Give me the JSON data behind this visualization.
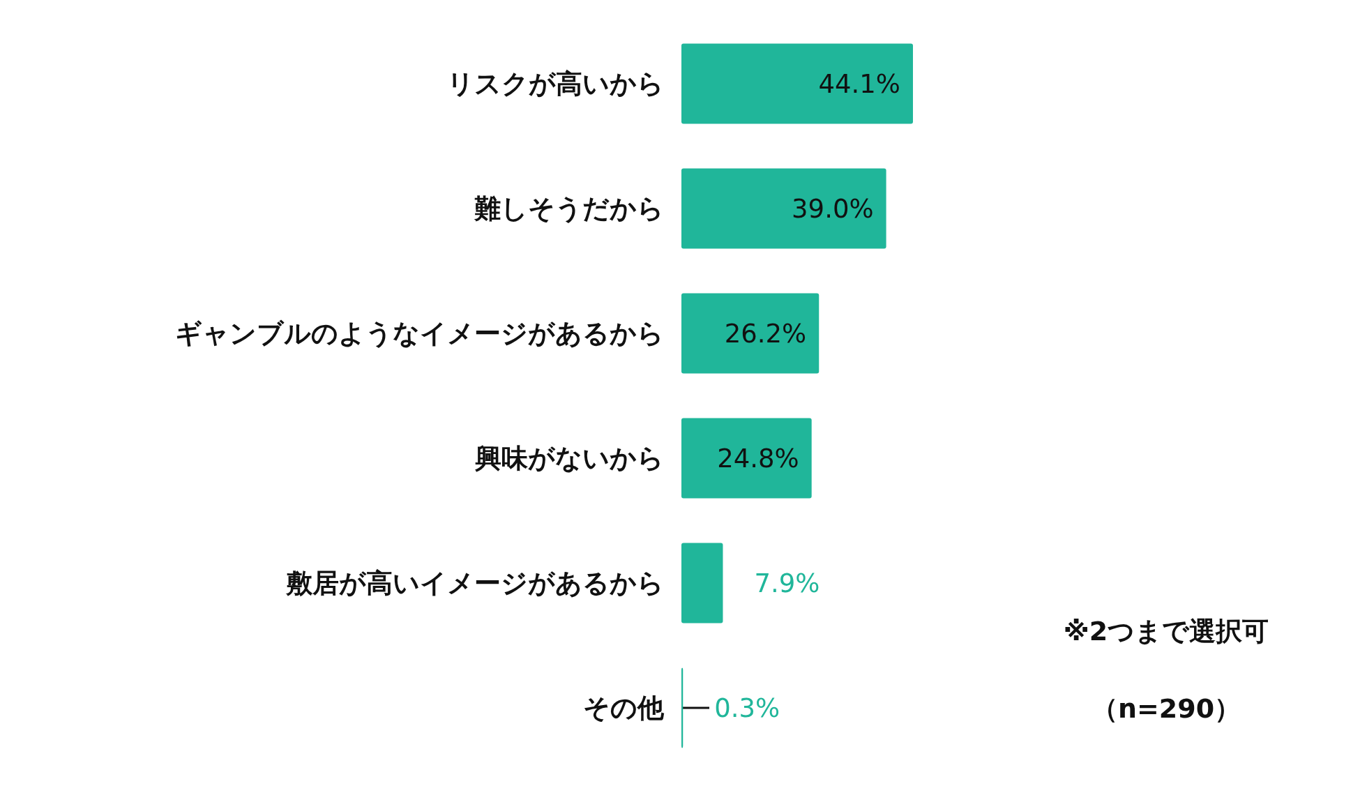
{
  "chart_data": {
    "type": "bar",
    "orientation": "horizontal",
    "categories": [
      "リスクが高いから",
      "難しそうだから",
      "ギャンブルのようなイメージがあるから",
      "興味がないから",
      "敷居が高いイメージがあるから",
      "その他"
    ],
    "values": [
      44.1,
      39.0,
      26.2,
      24.8,
      7.9,
      0.3
    ],
    "value_labels": [
      "44.1%",
      "39.0%",
      "26.2%",
      "24.8%",
      "7.9%",
      "0.3%"
    ],
    "color": "#20b69a",
    "annotations": [
      "※2つまで選択可",
      "（n=290）"
    ]
  }
}
